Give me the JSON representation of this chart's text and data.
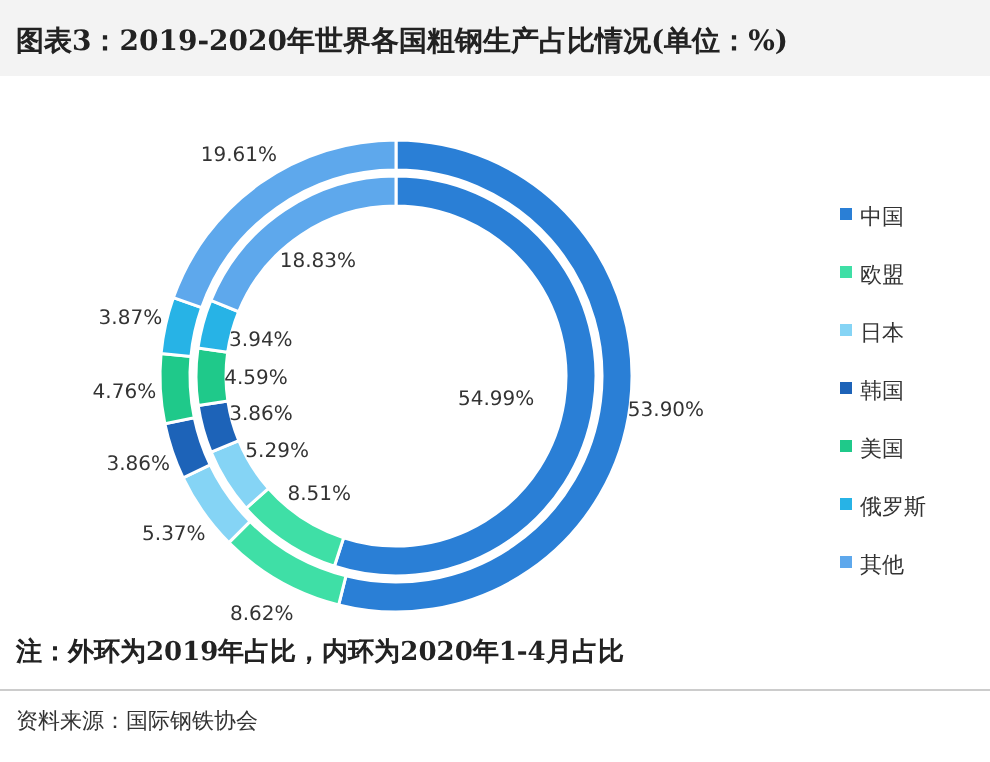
{
  "chart_data": {
    "type": "donut",
    "title": "图表3：2019-2020年世界各国粗钢生产占比情况(单位：%)",
    "categories": [
      "中国",
      "欧盟",
      "日本",
      "韩国",
      "美国",
      "俄罗斯",
      "其他"
    ],
    "colors": [
      "#2a7fd6",
      "#3fdfa6",
      "#85d4f5",
      "#1d63b8",
      "#1fc98a",
      "#27b3e6",
      "#5ea8ec"
    ],
    "series": [
      {
        "values": [
          53.9,
          8.62,
          5.37,
          3.86,
          4.76,
          3.87,
          19.61
        ],
        "value_labels": [
          "53.90%",
          "8.62%",
          "5.37%",
          "3.86%",
          "4.76%",
          "3.87%",
          "19.61%"
        ]
      },
      {
        "values": [
          54.99,
          8.51,
          5.29,
          3.86,
          4.59,
          3.94,
          18.83
        ],
        "value_labels": [
          "54.99%",
          "8.51%",
          "5.29%",
          "3.86%",
          "4.59%",
          "3.94%",
          "18.83%"
        ]
      }
    ],
    "legend": "right",
    "annotations": [
      "注：外环为2019年占比，内环为2020年1-4月占比",
      "资料来源：国际钢铁协会"
    ]
  }
}
